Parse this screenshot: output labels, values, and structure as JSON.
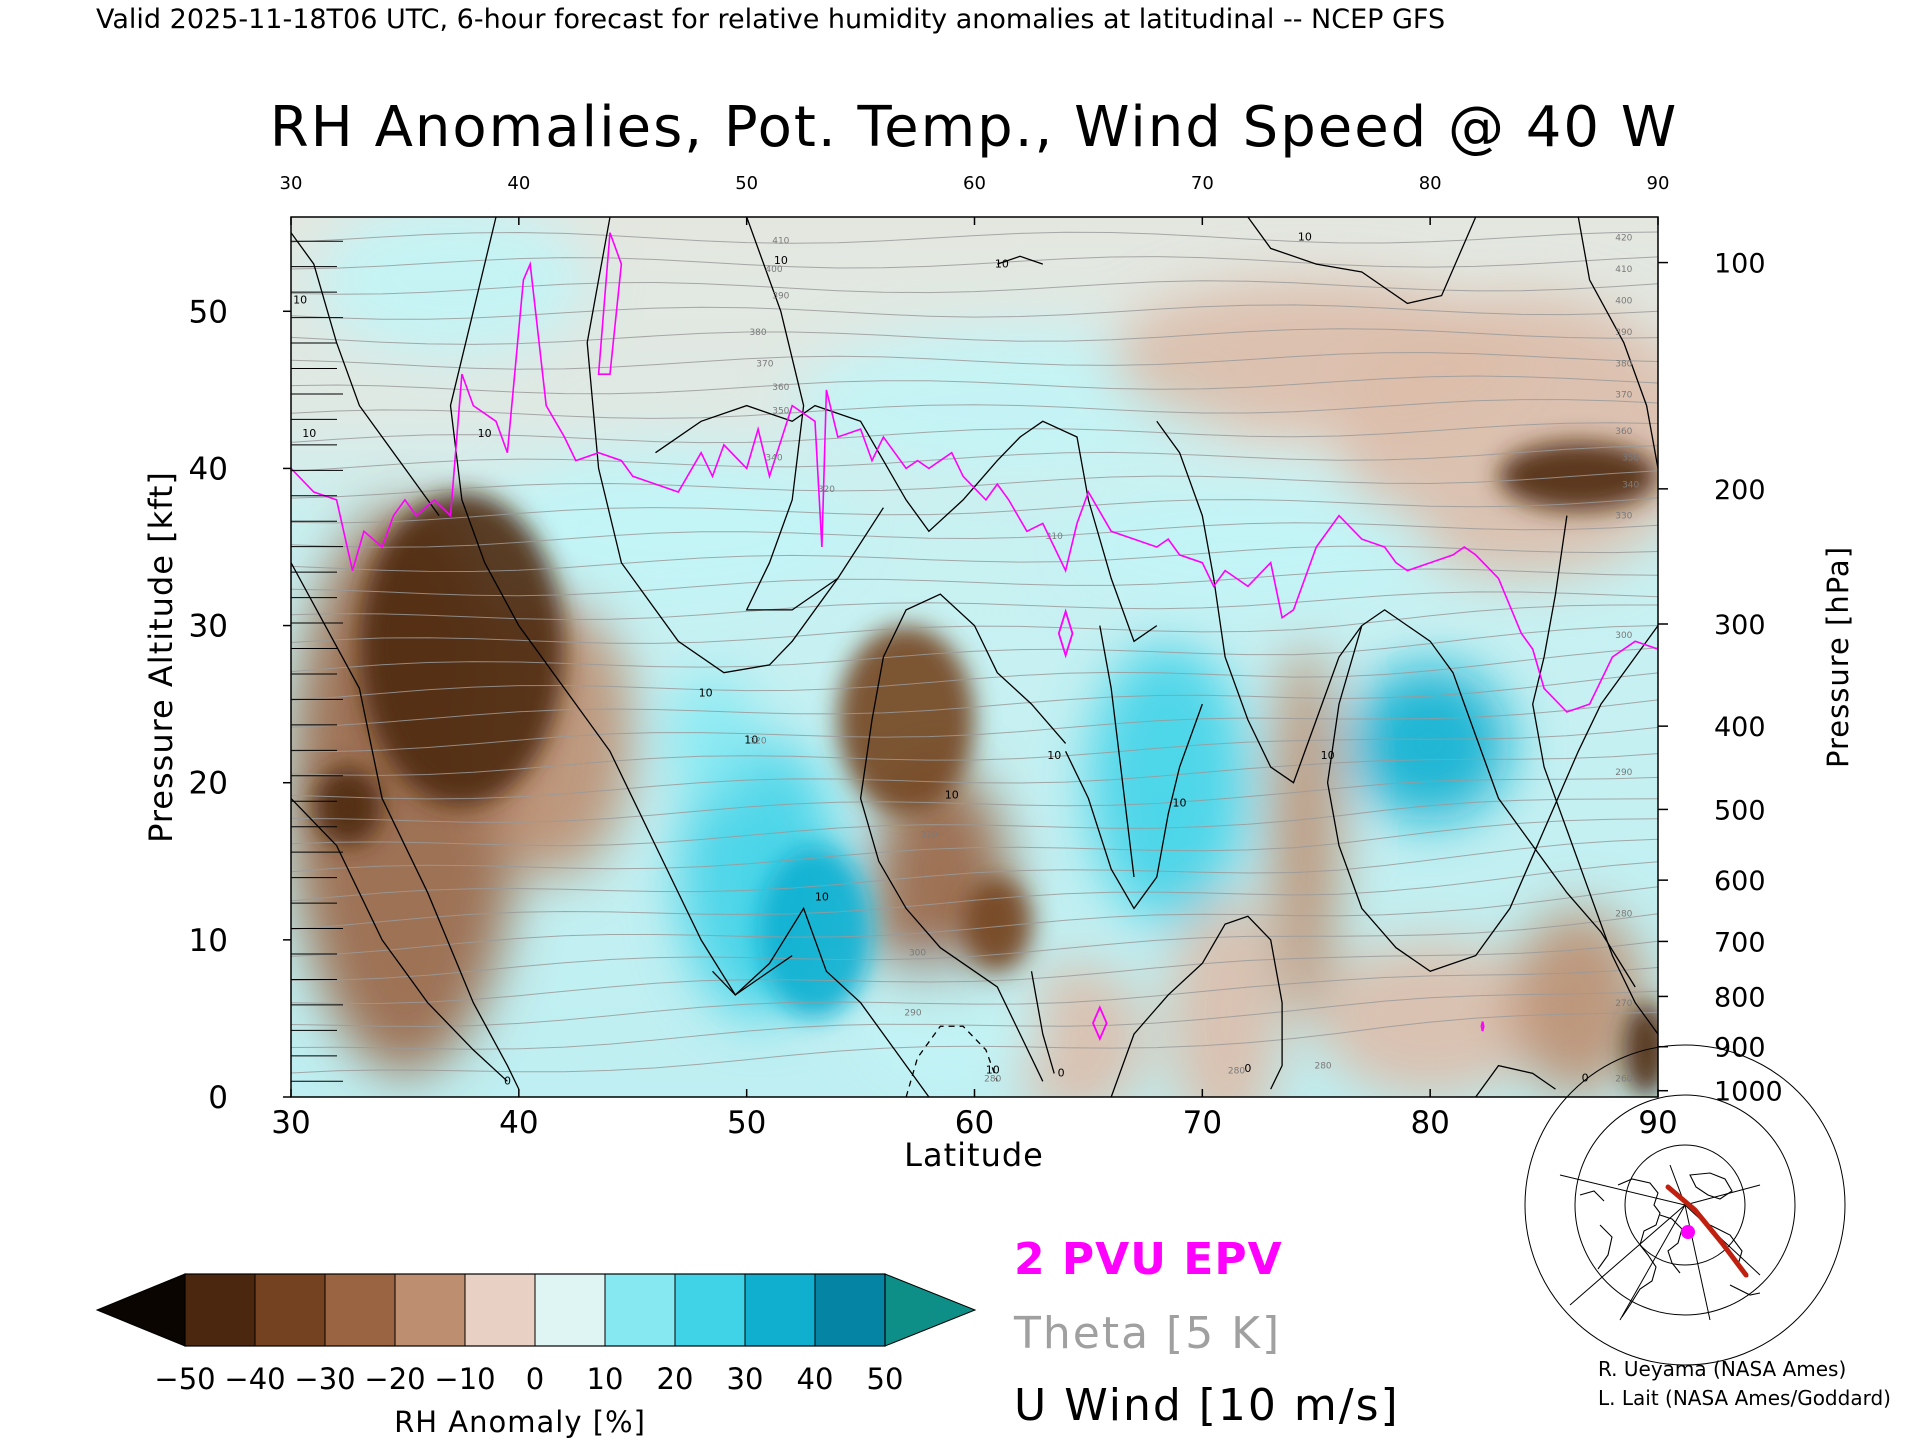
{
  "header": "Valid 2025-11-18T06 UTC, 6-hour forecast for relative humidity anomalies at latitudinal -- NCEP GFS",
  "chart_data": {
    "type": "heatmap",
    "title": "RH Anomalies, Pot. Temp., Wind Speed @ 40 W",
    "xlabel": "Latitude",
    "ylabel": "Pressure Altitude [kft]",
    "ylabel_right": "Pressure [hPa]",
    "xlim": [
      30,
      90
    ],
    "ylim": [
      0,
      56
    ],
    "x_ticks": [
      30,
      40,
      50,
      60,
      70,
      80,
      90
    ],
    "y_ticks": [
      0,
      10,
      20,
      30,
      40,
      50
    ],
    "pressure_ticks": [
      {
        "hpa": "100",
        "kft": 53.1
      },
      {
        "hpa": "200",
        "kft": 38.7
      },
      {
        "hpa": "300",
        "kft": 30.1
      },
      {
        "hpa": "400",
        "kft": 23.6
      },
      {
        "hpa": "500",
        "kft": 18.3
      },
      {
        "hpa": "600",
        "kft": 13.8
      },
      {
        "hpa": "700",
        "kft": 9.9
      },
      {
        "hpa": "800",
        "kft": 6.4
      },
      {
        "hpa": "900",
        "kft": 3.2
      },
      {
        "hpa": "1000",
        "kft": 0.4
      }
    ],
    "rh_anomaly_blobs": [
      {
        "lat": 37.5,
        "kft": 28.5,
        "rx": 4.5,
        "ry": 10.0,
        "value": -50
      },
      {
        "lat": 35.0,
        "kft": 19.5,
        "rx": 5.0,
        "ry": 18.0,
        "value": -32
      },
      {
        "lat": 32.5,
        "kft": 18.5,
        "rx": 1.5,
        "ry": 2.5,
        "value": -50
      },
      {
        "lat": 41.5,
        "kft": 23.0,
        "rx": 3.5,
        "ry": 9.0,
        "value": -22
      },
      {
        "lat": 57.0,
        "kft": 24.0,
        "rx": 3.0,
        "ry": 6.0,
        "value": -42
      },
      {
        "lat": 58.5,
        "kft": 13.0,
        "rx": 3.0,
        "ry": 8.0,
        "value": -28
      },
      {
        "lat": 61.0,
        "kft": 11.0,
        "rx": 1.5,
        "ry": 3.0,
        "value": -38
      },
      {
        "lat": 64.5,
        "kft": 3.5,
        "rx": 3.0,
        "ry": 5.0,
        "value": -15
      },
      {
        "lat": 74.5,
        "kft": 17.0,
        "rx": 1.5,
        "ry": 12.0,
        "value": -22
      },
      {
        "lat": 71.0,
        "kft": 5.0,
        "rx": 2.5,
        "ry": 8.0,
        "value": -14
      },
      {
        "lat": 80.0,
        "kft": 5.0,
        "rx": 5.0,
        "ry": 5.0,
        "value": -12
      },
      {
        "lat": 86.5,
        "kft": 6.0,
        "rx": 3.0,
        "ry": 6.0,
        "value": -22
      },
      {
        "lat": 89.5,
        "kft": 3.0,
        "rx": 1.0,
        "ry": 3.0,
        "value": -50
      },
      {
        "lat": 84.0,
        "kft": 42.0,
        "rx": 8.0,
        "ry": 9.0,
        "value": -15
      },
      {
        "lat": 86.5,
        "kft": 39.5,
        "rx": 3.5,
        "ry": 2.2,
        "value": -50
      },
      {
        "lat": 50.5,
        "kft": 14.0,
        "rx": 3.5,
        "ry": 9.0,
        "value": 28
      },
      {
        "lat": 53.0,
        "kft": 10.5,
        "rx": 2.5,
        "ry": 5.5,
        "value": 42
      },
      {
        "lat": 48.5,
        "kft": 23.0,
        "rx": 2.0,
        "ry": 4.0,
        "value": 22
      },
      {
        "lat": 68.5,
        "kft": 20.0,
        "rx": 3.5,
        "ry": 9.0,
        "value": 34
      },
      {
        "lat": 80.0,
        "kft": 22.5,
        "rx": 3.5,
        "ry": 5.0,
        "value": 35
      },
      {
        "lat": 59.0,
        "kft": 4.5,
        "rx": 4.0,
        "ry": 4.0,
        "value": 14
      },
      {
        "lat": 47.0,
        "kft": 36.0,
        "rx": 8.0,
        "ry": 5.0,
        "value": 12
      },
      {
        "lat": 72.0,
        "kft": 35.0,
        "rx": 8.0,
        "ry": 4.0,
        "value": 12
      },
      {
        "lat": 62.0,
        "kft": 44.0,
        "rx": 10.0,
        "ry": 5.0,
        "value": 8
      },
      {
        "lat": 75.0,
        "kft": 47.0,
        "rx": 9.0,
        "ry": 5.0,
        "value": -10
      },
      {
        "lat": 37.0,
        "kft": 52.0,
        "rx": 6.0,
        "ry": 5.0,
        "value": 8
      }
    ],
    "contour_labels": [
      {
        "text": "10",
        "lat": 30.4,
        "kft": 50.5
      },
      {
        "text": "10",
        "lat": 30.8,
        "kft": 42.0
      },
      {
        "text": "10",
        "lat": 38.5,
        "kft": 42.0
      },
      {
        "text": "10",
        "lat": 51.5,
        "kft": 53.0
      },
      {
        "text": "10",
        "lat": 61.2,
        "kft": 52.8
      },
      {
        "text": "10",
        "lat": 74.5,
        "kft": 54.5
      },
      {
        "text": "10",
        "lat": 48.2,
        "kft": 25.5
      },
      {
        "text": "10",
        "lat": 50.2,
        "kft": 22.5
      },
      {
        "text": "10",
        "lat": 59.0,
        "kft": 19.0
      },
      {
        "text": "10",
        "lat": 63.5,
        "kft": 21.5
      },
      {
        "text": "10",
        "lat": 69.0,
        "kft": 18.5
      },
      {
        "text": "10",
        "lat": 75.5,
        "kft": 21.5
      },
      {
        "text": "10",
        "lat": 60.8,
        "kft": 1.5
      },
      {
        "text": "10",
        "lat": 53.3,
        "kft": 12.5
      },
      {
        "text": "0",
        "lat": 39.5,
        "kft": 0.8
      },
      {
        "text": "0",
        "lat": 63.8,
        "kft": 1.3
      },
      {
        "text": "0",
        "lat": 72.0,
        "kft": 1.6
      },
      {
        "text": "0",
        "lat": 86.8,
        "kft": 1.0
      },
      {
        "text": "410",
        "lat": 51.5,
        "kft": 54.3
      },
      {
        "text": "400",
        "lat": 51.2,
        "kft": 52.5
      },
      {
        "text": "390",
        "lat": 51.5,
        "kft": 50.8
      },
      {
        "text": "380",
        "lat": 50.5,
        "kft": 48.5
      },
      {
        "text": "370",
        "lat": 50.8,
        "kft": 46.5
      },
      {
        "text": "360",
        "lat": 51.5,
        "kft": 45.0
      },
      {
        "text": "350",
        "lat": 51.5,
        "kft": 43.5
      },
      {
        "text": "340",
        "lat": 51.2,
        "kft": 40.5
      },
      {
        "text": "420",
        "lat": 88.5,
        "kft": 54.5
      },
      {
        "text": "410",
        "lat": 88.5,
        "kft": 52.5
      },
      {
        "text": "400",
        "lat": 88.5,
        "kft": 50.5
      },
      {
        "text": "390",
        "lat": 88.5,
        "kft": 48.5
      },
      {
        "text": "380",
        "lat": 88.5,
        "kft": 46.5
      },
      {
        "text": "370",
        "lat": 88.5,
        "kft": 44.5
      },
      {
        "text": "360",
        "lat": 88.5,
        "kft": 42.2
      },
      {
        "text": "350",
        "lat": 88.8,
        "kft": 40.5
      },
      {
        "text": "340",
        "lat": 88.8,
        "kft": 38.8
      },
      {
        "text": "330",
        "lat": 88.5,
        "kft": 36.8
      },
      {
        "text": "320",
        "lat": 53.5,
        "kft": 38.5
      },
      {
        "text": "310",
        "lat": 63.5,
        "kft": 35.5
      },
      {
        "text": "300",
        "lat": 88.5,
        "kft": 29.2
      },
      {
        "text": "290",
        "lat": 88.5,
        "kft": 20.5
      },
      {
        "text": "280",
        "lat": 88.5,
        "kft": 11.5
      },
      {
        "text": "270",
        "lat": 88.5,
        "kft": 5.8
      },
      {
        "text": "260",
        "lat": 88.5,
        "kft": 1.0
      },
      {
        "text": "320",
        "lat": 50.5,
        "kft": 22.5
      },
      {
        "text": "300",
        "lat": 57.5,
        "kft": 9.0
      },
      {
        "text": "290",
        "lat": 57.3,
        "kft": 5.2
      },
      {
        "text": "280",
        "lat": 60.8,
        "kft": 1.0
      },
      {
        "text": "280",
        "lat": 71.5,
        "kft": 1.5
      },
      {
        "text": "280",
        "lat": 75.3,
        "kft": 1.8
      },
      {
        "text": "310",
        "lat": 58.0,
        "kft": 16.5
      }
    ]
  },
  "colorbar": {
    "label": "RH Anomaly [%]",
    "ticks": [
      "−50",
      "−40",
      "−30",
      "−20",
      "−10",
      "0",
      "10",
      "20",
      "30",
      "40",
      "50"
    ],
    "colors": [
      "#0a0501",
      "#4c2710",
      "#744220",
      "#9a6443",
      "#bd8e70",
      "#dcbdaa",
      "#ecf2f0",
      "#c2f4f6",
      "#86e9f2",
      "#40d3e8",
      "#10afd0",
      "#0684a4",
      "#0d8f88"
    ]
  },
  "legend": {
    "epv": "2 PVU EPV",
    "theta": "Theta [5 K]",
    "uwind": "U Wind [10 m/s]"
  },
  "colors": {
    "epv": "#ff00ff",
    "theta": "#9a9a9a",
    "wind": "#000000",
    "track": "#c02010"
  },
  "credits": {
    "line1": "R. Ueyama (NASA Ames)",
    "line2": "L. Lait (NASA Ames/Goddard)"
  }
}
